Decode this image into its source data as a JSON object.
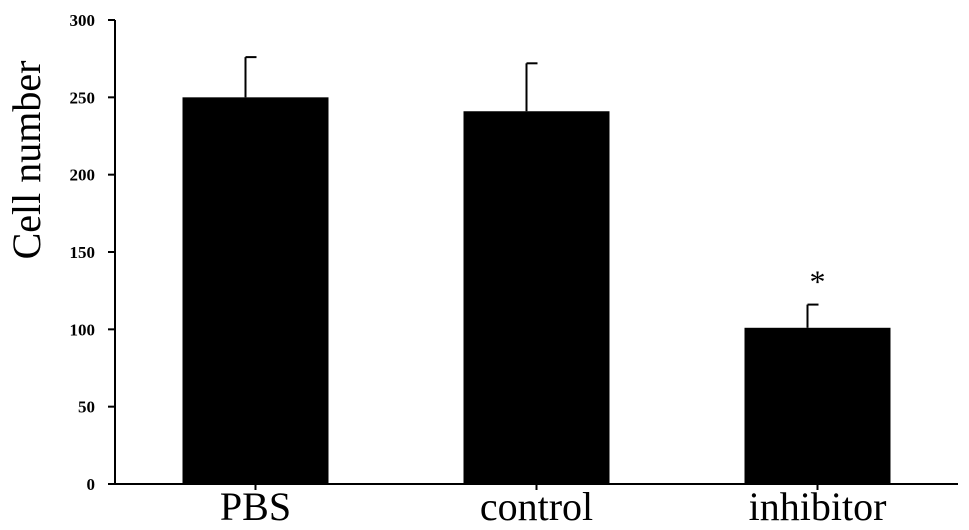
{
  "chart_data": {
    "type": "bar",
    "title": "",
    "xlabel": "",
    "ylabel": "Cell number",
    "categories": [
      "PBS",
      "control",
      "inhibitor"
    ],
    "values": [
      250,
      241,
      101
    ],
    "error": [
      26,
      31,
      15
    ],
    "ylim": [
      0,
      300
    ],
    "yticks": [
      "0",
      "50",
      "100",
      "150",
      "200",
      "250",
      "300"
    ],
    "annotations": [
      {
        "category": "inhibitor",
        "text": "*"
      }
    ],
    "grid": false,
    "legend": "none",
    "bar_color": "#000000"
  }
}
